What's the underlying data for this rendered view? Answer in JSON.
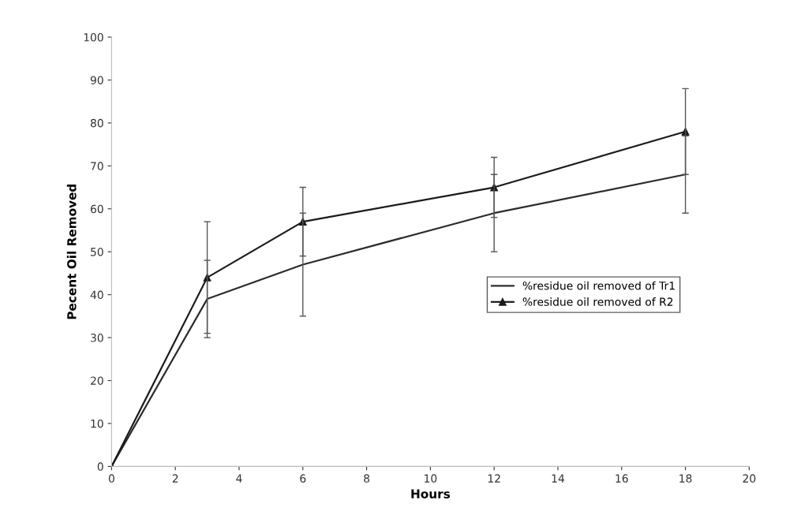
{
  "chart_data": {
    "type": "line",
    "xlabel": "Hours",
    "ylabel": "Pecent Oil Removed",
    "xlim": [
      0,
      20
    ],
    "xticks": [
      0,
      2,
      4,
      6,
      8,
      10,
      12,
      14,
      16,
      18,
      20
    ],
    "ylim": [
      0,
      100
    ],
    "yticks": [
      0,
      10,
      20,
      30,
      40,
      50,
      60,
      70,
      80,
      90,
      100
    ],
    "x": [
      0,
      3,
      6,
      12,
      18
    ],
    "grid": false,
    "legend": "center right",
    "series": [
      {
        "name": "%residue oil removed of Tr1",
        "color": "#2b2b2b",
        "values": [
          0,
          39,
          47,
          59,
          68
        ],
        "errors": [
          null,
          9,
          12,
          9,
          9
        ],
        "marker": "none"
      },
      {
        "name": "%residue oil removed of R2",
        "color": "#1a1a1a",
        "values": [
          0,
          44,
          57,
          65,
          78
        ],
        "errors": [
          null,
          13,
          8,
          7,
          10
        ],
        "marker": "triangle"
      }
    ]
  }
}
